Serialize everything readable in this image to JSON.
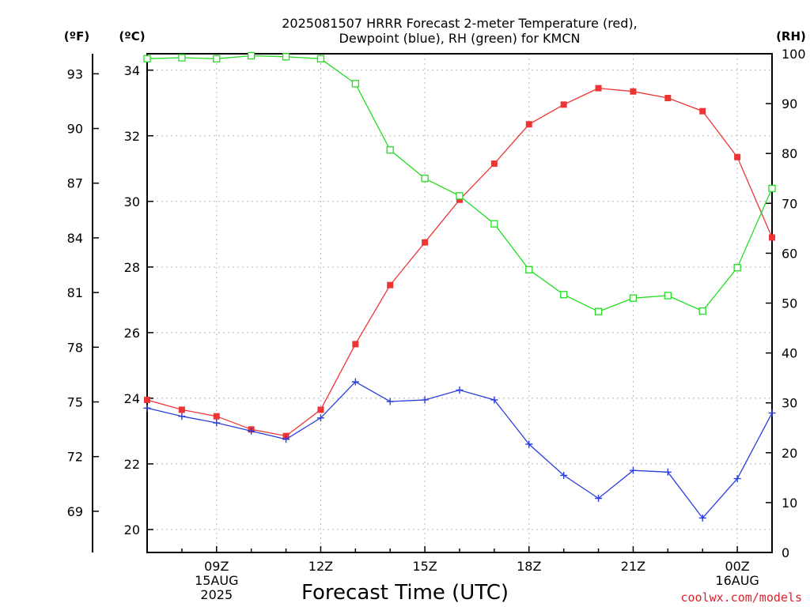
{
  "chart_data": {
    "type": "line",
    "title": [
      "2025081507 HRRR Forecast 2-meter Temperature (red),",
      "Dewpoint (blue), RH (green) for KMCN"
    ],
    "xlabel": "Forecast Time (UTC)",
    "unit_f": "(ºF)",
    "unit_c": "(ºC)",
    "unit_rh": "(RH)",
    "credit": "coolwx.com/models",
    "x": [
      7,
      8,
      9,
      10,
      11,
      12,
      13,
      14,
      15,
      16,
      17,
      18,
      19,
      20,
      21,
      22,
      23,
      24,
      25
    ],
    "xlim": [
      7,
      25
    ],
    "ylim_c": [
      19.3,
      34.5
    ],
    "ylim_rh": [
      0,
      100
    ],
    "x_ticks": [
      {
        "x": 9,
        "lines": [
          "09Z",
          "15AUG",
          "2025"
        ]
      },
      {
        "x": 12,
        "lines": [
          "12Z"
        ]
      },
      {
        "x": 15,
        "lines": [
          "15Z"
        ]
      },
      {
        "x": 18,
        "lines": [
          "18Z"
        ]
      },
      {
        "x": 21,
        "lines": [
          "21Z"
        ]
      },
      {
        "x": 24,
        "lines": [
          "00Z",
          "16AUG"
        ]
      }
    ],
    "c_ticks": [
      20,
      22,
      24,
      26,
      28,
      30,
      32,
      34
    ],
    "f_ticks": [
      69,
      72,
      75,
      78,
      81,
      84,
      87,
      90,
      93
    ],
    "rh_ticks": [
      0,
      10,
      20,
      30,
      40,
      50,
      60,
      70,
      80,
      90,
      100
    ],
    "grid": true,
    "series": [
      {
        "name": "Temperature",
        "color": "#ee3535",
        "marker": "filled-square",
        "axis": "c",
        "values": [
          23.95,
          23.65,
          23.45,
          23.05,
          22.85,
          23.65,
          25.65,
          27.45,
          28.75,
          30.05,
          31.15,
          32.35,
          32.95,
          33.45,
          33.35,
          33.15,
          32.75,
          31.35,
          28.9
        ]
      },
      {
        "name": "Dewpoint",
        "color": "#2a3ee0",
        "marker": "plus",
        "axis": "c",
        "values": [
          23.7,
          23.45,
          23.25,
          23.0,
          22.75,
          23.4,
          24.5,
          23.9,
          23.95,
          24.25,
          23.95,
          22.6,
          21.65,
          20.95,
          21.8,
          21.75,
          20.35,
          21.55,
          23.55
        ]
      },
      {
        "name": "RH",
        "color": "#22dd22",
        "marker": "open-square",
        "axis": "rh",
        "values": [
          99.0,
          99.2,
          99.0,
          99.6,
          99.4,
          99.0,
          94.0,
          80.7,
          75.0,
          71.5,
          65.9,
          56.7,
          51.7,
          48.3,
          51.0,
          51.5,
          48.4,
          57.1,
          73.0
        ]
      }
    ]
  }
}
